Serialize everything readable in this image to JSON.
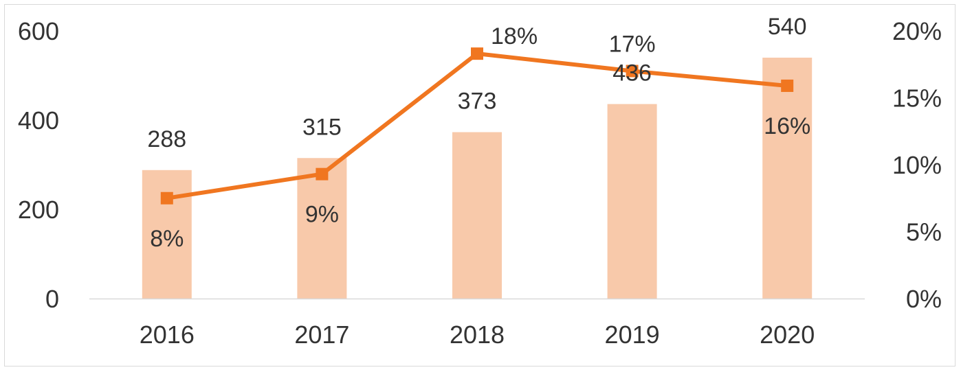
{
  "chart_data": {
    "type": "bar",
    "categories": [
      "2016",
      "2017",
      "2018",
      "2019",
      "2020"
    ],
    "title": "",
    "xlabel": "",
    "ylabel": "",
    "ylim": [
      0,
      600
    ],
    "y_ticks": [
      "0",
      "200",
      "400",
      "600"
    ],
    "y2lim": [
      0,
      20
    ],
    "y2_ticks": [
      "0%",
      "5%",
      "10%",
      "15%",
      "20%"
    ],
    "grid": false,
    "legend": "none",
    "series": [
      {
        "type": "bar",
        "axis": "left",
        "color": "#f8c9aa",
        "values": [
          288,
          315,
          373,
          436,
          540
        ],
        "labels": [
          "288",
          "315",
          "373",
          "436",
          "540"
        ]
      },
      {
        "type": "line",
        "axis": "right",
        "color": "#f07620",
        "marker": "square",
        "values": [
          7.5,
          9.3,
          18.3,
          17,
          15.9
        ],
        "labels": [
          "8%",
          "9%",
          "18%",
          "17%",
          "16%"
        ]
      }
    ]
  }
}
